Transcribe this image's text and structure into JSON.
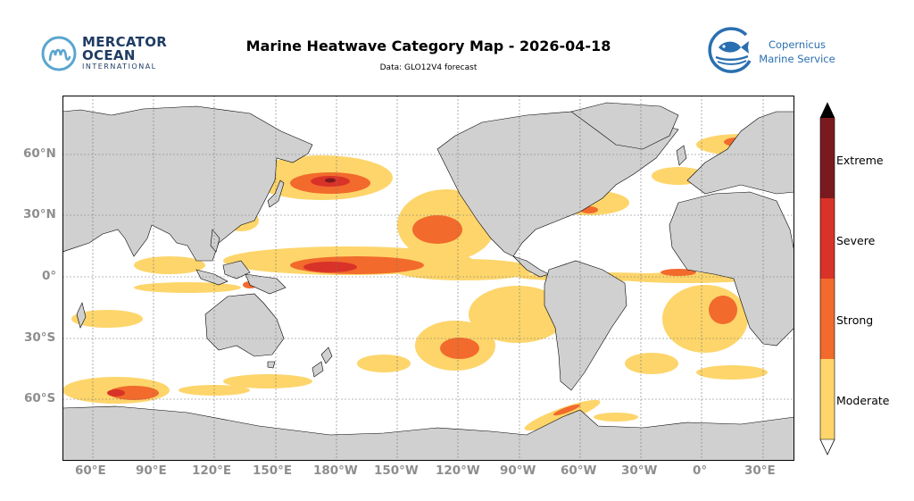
{
  "header": {
    "title": "Marine Heatwave Category Map - 2026-04-18",
    "subtitle": "Data: GLO12V4 forecast"
  },
  "logos": {
    "left": {
      "line1": "MERCATOR",
      "line2": "OCEAN",
      "line3": "INTERNATIONAL",
      "icon": "mercator-m-icon",
      "color": "#1f3c63"
    },
    "right": {
      "line1": "Copernicus",
      "line2": "Marine Service",
      "icon": "fish-logo-icon",
      "color": "#2a6fb0"
    }
  },
  "map": {
    "projection": "equirectangular",
    "central_longitude": "180°",
    "land_color": "#d0d0d0",
    "ocean_color": "#ffffff",
    "grid": true,
    "lat_labels": [
      "60°N",
      "30°N",
      "0°",
      "30°S",
      "60°S"
    ],
    "lon_labels": [
      "60°E",
      "90°E",
      "120°E",
      "150°E",
      "180°W",
      "150°W",
      "120°W",
      "90°W",
      "60°W",
      "30°W",
      "0°",
      "30°E"
    ]
  },
  "legend": {
    "type": "colorbar",
    "categories": [
      {
        "label": "Extreme",
        "color": "#7b1a1e"
      },
      {
        "label": "Severe",
        "color": "#d93228"
      },
      {
        "label": "Strong",
        "color": "#f26a2c"
      },
      {
        "label": "Moderate",
        "color": "#fdd56a"
      }
    ]
  }
}
